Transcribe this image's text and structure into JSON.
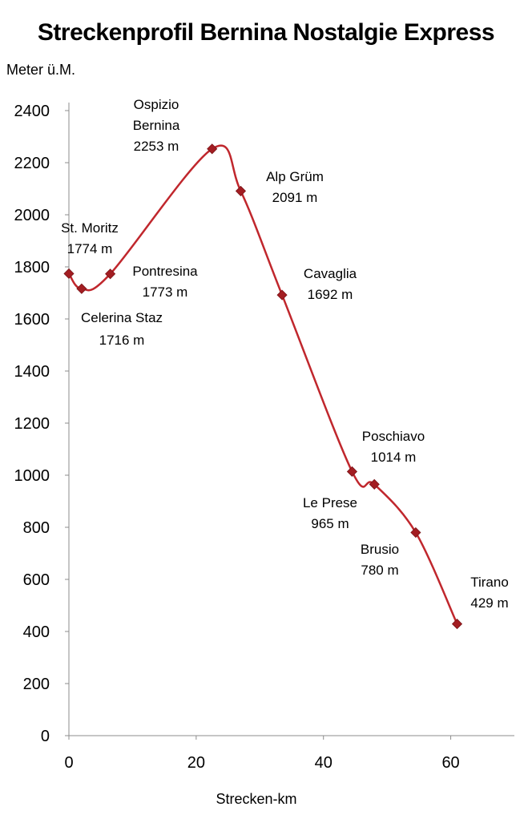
{
  "chart_data": {
    "type": "line",
    "title": "Streckenprofil Bernina Nostalgie Express",
    "xlabel": "Strecken-km",
    "ylabel": "Meter ü.M.",
    "xlim": [
      0,
      70
    ],
    "ylim": [
      0,
      2400
    ],
    "xticks": [
      0,
      20,
      40,
      60
    ],
    "yticks": [
      0,
      200,
      400,
      600,
      800,
      1000,
      1200,
      1400,
      1600,
      1800,
      2000,
      2200,
      2400
    ],
    "grid": false,
    "legend": "none",
    "line_color": "#c0272d",
    "marker_color": "#a31d22",
    "series": [
      {
        "points": [
          {
            "x": 0,
            "y": 1774,
            "name": "St. Moritz",
            "label": "1774 m"
          },
          {
            "x": 2,
            "y": 1716,
            "name": "Celerina Staz",
            "label": "1716 m"
          },
          {
            "x": 6.5,
            "y": 1773,
            "name": "Pontresina",
            "label": "1773 m"
          },
          {
            "x": 22.5,
            "y": 2253,
            "name": "Ospizio Bernina",
            "label": "2253 m"
          },
          {
            "x": 27,
            "y": 2091,
            "name": "Alp Grüm",
            "label": "2091 m"
          },
          {
            "x": 33.5,
            "y": 1692,
            "name": "Cavaglia",
            "label": "1692 m"
          },
          {
            "x": 44.5,
            "y": 1014,
            "name": "Poschiavo",
            "label": "1014 m"
          },
          {
            "x": 48,
            "y": 965,
            "name": "Le Prese",
            "label": "965 m"
          },
          {
            "x": 54.5,
            "y": 780,
            "name": "Brusio",
            "label": "780 m"
          },
          {
            "x": 61,
            "y": 429,
            "name": "Tirano",
            "label": "429 m"
          }
        ]
      }
    ]
  }
}
